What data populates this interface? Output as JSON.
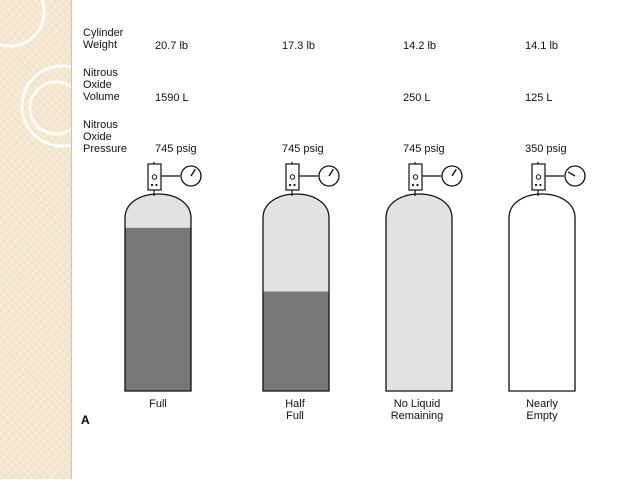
{
  "row_labels": {
    "weight": [
      "Cylinder",
      "Weight"
    ],
    "volume": [
      "Nitrous",
      "Oxide",
      "Volume"
    ],
    "pressure": [
      "Nitrous",
      "Oxide",
      "Pressure"
    ]
  },
  "figure_letter": "A",
  "cylinders": [
    {
      "weight": "20.7 lb",
      "volume": "1590 L",
      "pressure": "745 psig",
      "caption": [
        "Full"
      ],
      "liquid_fraction": 0.82,
      "gas_fill": "#e2e2e2",
      "liquid_color": "#777777"
    },
    {
      "weight": "17.3 lb",
      "volume": "",
      "pressure": "745 psig",
      "caption": [
        "Half",
        "Full"
      ],
      "liquid_fraction": 0.5,
      "gas_fill": "#e2e2e2",
      "liquid_color": "#777777"
    },
    {
      "weight": "14.2 lb",
      "volume": "250 L",
      "pressure": "745 psig",
      "caption": [
        "No Liquid",
        "Remaining"
      ],
      "liquid_fraction": 0,
      "gas_fill": "#e2e2e2",
      "liquid_color": "#777777"
    },
    {
      "weight": "14.1 lb",
      "volume": "125 L",
      "pressure": "350 psig",
      "caption": [
        "Nearly",
        "Empty"
      ],
      "liquid_fraction": 0,
      "gas_fill": "#ffffff",
      "liquid_color": "#777777"
    }
  ],
  "gauge_readings": [
    0.62,
    0.62,
    0.62,
    0.28
  ],
  "colors": {
    "outline": "#111111",
    "margin_bg": "#f6ebd6",
    "margin_ring": "#ffffff"
  }
}
